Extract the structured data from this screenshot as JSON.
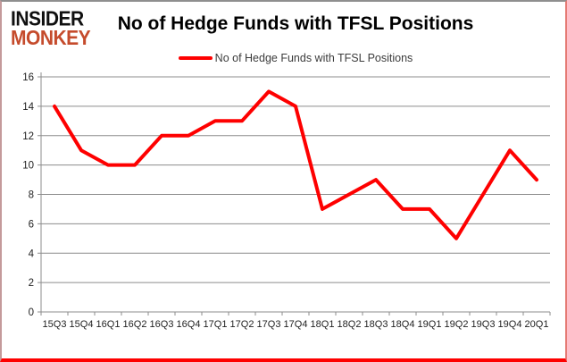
{
  "brand": {
    "line1": "INSIDER",
    "line2": "MONKEY",
    "line2_color": "#c54b2c"
  },
  "header": {
    "title": "No of Hedge Funds with TFSL Positions"
  },
  "legend": {
    "label": "No of Hedge Funds with TFSL Positions",
    "swatch_color": "#fe0000"
  },
  "chart_data": {
    "type": "line",
    "title": "No of Hedge Funds with TFSL Positions",
    "xlabel": "",
    "ylabel": "",
    "categories": [
      "15Q3",
      "15Q4",
      "16Q1",
      "16Q2",
      "16Q3",
      "16Q4",
      "17Q1",
      "17Q2",
      "17Q3",
      "17Q4",
      "18Q1",
      "18Q2",
      "18Q3",
      "18Q4",
      "19Q1",
      "19Q2",
      "19Q3",
      "19Q4",
      "20Q1"
    ],
    "series": [
      {
        "name": "No of Hedge Funds with TFSL Positions",
        "color": "#fe0000",
        "values": [
          14,
          11,
          10,
          10,
          12,
          12,
          13,
          13,
          15,
          14,
          7,
          8,
          9,
          7,
          7,
          5,
          8,
          11,
          9
        ]
      }
    ],
    "ylim": [
      0,
      16
    ],
    "ytick_step": 2,
    "grid": true,
    "gridline_color": "#8c8c8c",
    "axis_color": "#8c8c8c",
    "legend_position": "top"
  }
}
